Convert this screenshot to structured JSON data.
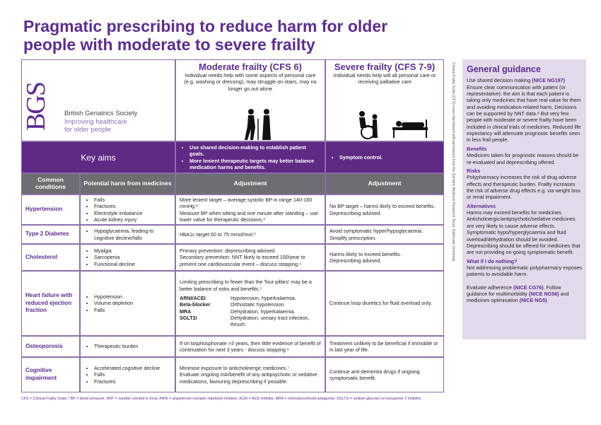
{
  "title_lines": [
    "Pragmatic prescribing to reduce harm for older",
    "people with moderate to severe frailty"
  ],
  "logo": {
    "mark": "BGS",
    "name": "British Geriatrics Society",
    "tagline_lines": [
      "Improving healthcare",
      "for older people"
    ]
  },
  "moderate": {
    "title": "Moderate frailty (CFS 6)",
    "description": "Individual needs help with some aspects of personal care (e.g. washing or dressing), may struggle on stairs, may no longer go out alone"
  },
  "severe": {
    "title": "Severe frailty (CFS 7-9)",
    "description": "Individual needs help will all personal care or receiving palliative care"
  },
  "key_aims": {
    "label": "Key aims",
    "moderate": [
      "Use shared decision-making to establish patient goals.",
      "More lenient therapeutic targets may better balance medication harms and benefits."
    ],
    "severe": [
      "Symptom control."
    ]
  },
  "headers": [
    "Common conditions",
    "Potential harm from medicines",
    "Adjustment",
    "Adjustment"
  ],
  "rows": [
    {
      "condition": "Hypertension",
      "harms": [
        "Falls",
        "Fractures",
        "Electrolyte imbalance",
        "Acute kidney injury"
      ],
      "moderate": [
        "More lenient target – average systolic BP in range 140-160 mmHg.³",
        "Measure BP when sitting and one minute after standing – use lower value for therapeutic decisions.³"
      ],
      "severe": [
        "No BP target – harms likely to exceed benefits.",
        "Deprescribing advised."
      ]
    },
    {
      "condition": "Type 2 Diabetes",
      "harms": [
        "Hypoglycaemia, leading to cognitive decline/falls"
      ],
      "moderate": [
        "HbA1c target 60 to 75 mmol/mol.³"
      ],
      "severe": [
        "Avoid symptomatic hyper/hypoglycaemia.",
        "Simplify prescription."
      ]
    },
    {
      "condition": "Cholesterol",
      "harms": [
        "Myalgia",
        "Sarcopenia",
        "Functional decline"
      ],
      "moderate": [
        "Primary prevention: deprescribing advised.",
        "Secondary prevention: NNT likely to exceed 100/year to prevent one cardiovascular event – discuss stopping.⁴"
      ],
      "severe": [
        "Harms likely to exceed benefits.",
        "Deprescribing advised."
      ]
    },
    {
      "condition": "Heart failure with reduced ejection fraction",
      "harms": [
        "Hypotension",
        "Volume depletion",
        "Falls"
      ],
      "moderate": [
        "Limiting prescribing to fewer than the 'four pillars' may be a better balance of risks and benefits.⁵"
      ],
      "drugs": [
        {
          "name": "ARNI/ACEI",
          "effect": "Hypotension, hyperkalaemia."
        },
        {
          "name": "Beta-blocker",
          "effect": "Orthostatic hypotension."
        },
        {
          "name": "MRA",
          "effect": "Dehydration, hyperkalaemia."
        },
        {
          "name": "SGLT2i",
          "effect": "Dehydration, urinary tract infection, thrush."
        }
      ],
      "severe": [
        "Continue loop diuretics for fluid overload only."
      ]
    },
    {
      "condition": "Osteoporosis",
      "harms": [
        "Therapeutic burden"
      ],
      "moderate": [
        "If on bisphosphonate >3 years, then little evidence of benefit of continuation for next 3 years - discuss stopping.⁶"
      ],
      "severe": [
        "Treatment unlikely to be beneficial if immobile or in last year of life."
      ]
    },
    {
      "condition": "Cognitive impairment",
      "harms": [
        "Accelerated cognitive decline",
        "Falls",
        "Fractures"
      ],
      "moderate": [
        "Minimise exposure to anticholinergic medicines.⁷",
        "Evaluate ongoing risk/benefit of any antipsychotic or sedative medications, favouring deprescribing if possible."
      ],
      "severe": [
        "Continue anti-dementia drugs if ongoing symptomatic benefit."
      ]
    }
  ],
  "side_note": "Clinical Frailty Scale (CFS) icons reproduced with permission from the Geriatric Medicine Research Team, Dalhousie University.",
  "guidance": {
    "heading": "General guidance",
    "intro": [
      {
        "text": "Use shared decision making "
      },
      {
        "text": "(NICE NG197)",
        "ref": true
      },
      {
        "text": " Ensure clear communication with patient (or representative): the aim is that each patient is taking only medicines that have real value for them and avoiding medication-related harm. Decisions can be supported by NNT data.⁸ But very few people with moderate or severe frailty have been included in clinical trials of medicines. Reduced life expectancy will attenuate prognostic benefits seen in less frail people."
      }
    ],
    "sections": [
      {
        "heading": "Benefits",
        "text": "Medicines taken for prognostic reasons should be re-evaluated and deprescribing offered."
      },
      {
        "heading": "Risks",
        "text": "Polypharmacy increases the risk of drug adverse effects and therapeutic burden. Frailty increases the risk of adverse drug effects e.g. via weight loss or renal impairment."
      },
      {
        "heading": "Alternatives",
        "text": "Harms may exceed benefits for medicines. Anticholinergic/antipsychotic/sedative medicines are very likely to cause adverse effects. Symptomatic hypo/hyperglycaemia and fluid overload/dehydration should be avoided. Deprescribing should be offered for medicines that are not providing on-going symptomatic benefit."
      },
      {
        "heading": "What if I do nothing?",
        "text": "Not addressing problematic polypharmacy exposes patients to avoidable harm."
      }
    ],
    "closing": [
      {
        "text": "Evaluate adherence "
      },
      {
        "text": "(NICE CG76)",
        "ref": true
      },
      {
        "text": ". Follow guidance for multimorbidity "
      },
      {
        "text": "(NICE NG56)",
        "ref": true
      },
      {
        "text": " and medicines optimisation "
      },
      {
        "text": "(NICE NG5)",
        "ref": true
      },
      {
        "text": "."
      }
    ]
  },
  "footnote": "CFS = Clinical Frailty Scale,⁹ BP = blood pressure, NNT = number needed to treat, ARNI = angiotensin receptor neprilysin inhibitor, ACEI = ACE inhibitor, MRA = mineralocorticoid antagonist, SGLT2i = sodium glucose co-transporter 2 inhibitor"
}
